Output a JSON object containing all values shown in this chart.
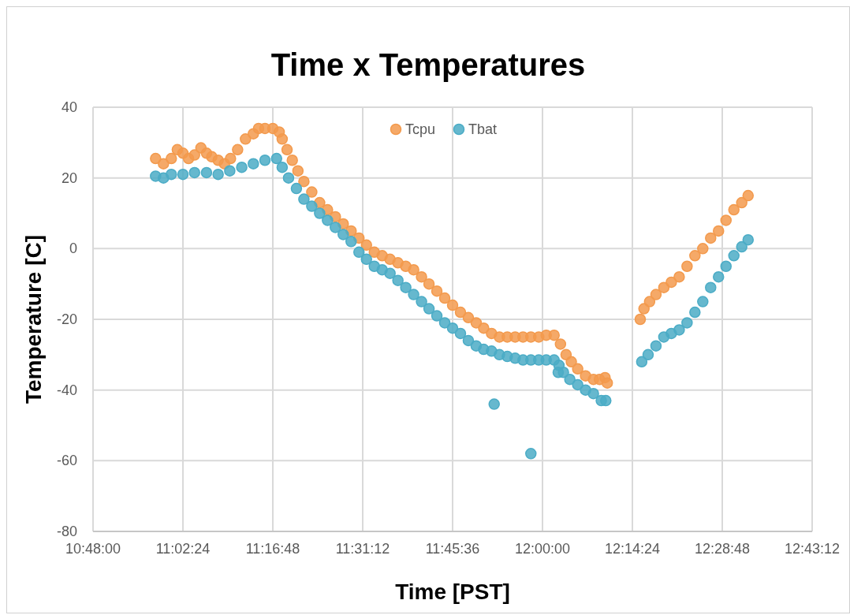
{
  "chart_data": {
    "type": "scatter",
    "title": "Time x Temperatures",
    "xlabel": "Time [PST]",
    "ylabel": "Temperature [C]",
    "xlim": [
      10.8,
      12.72
    ],
    "xticks": [
      {
        "value": 10.8,
        "label": "10:48:00"
      },
      {
        "value": 11.04,
        "label": "11:02:24"
      },
      {
        "value": 11.28,
        "label": "11:16:48"
      },
      {
        "value": 11.52,
        "label": "11:31:12"
      },
      {
        "value": 11.76,
        "label": "11:45:36"
      },
      {
        "value": 12.0,
        "label": "12:00:00"
      },
      {
        "value": 12.24,
        "label": "12:14:24"
      },
      {
        "value": 12.48,
        "label": "12:28:48"
      },
      {
        "value": 12.72,
        "label": "12:43:12"
      }
    ],
    "ylim": [
      -80,
      40
    ],
    "yticks": [
      -80,
      -60,
      -40,
      -20,
      0,
      20,
      40
    ],
    "grid": true,
    "legend": "top",
    "marker": "circle",
    "series": [
      {
        "name": "Tcpu",
        "color": "#f39a4d",
        "x": [
          10.967,
          10.988,
          11.009,
          11.025,
          11.04,
          11.055,
          11.071,
          11.088,
          11.103,
          11.117,
          11.134,
          11.151,
          11.167,
          11.186,
          11.207,
          11.228,
          11.242,
          11.259,
          11.28,
          11.297,
          11.305,
          11.318,
          11.332,
          11.347,
          11.363,
          11.384,
          11.405,
          11.426,
          11.447,
          11.468,
          11.489,
          11.51,
          11.53,
          11.551,
          11.572,
          11.593,
          11.614,
          11.635,
          11.656,
          11.677,
          11.697,
          11.718,
          11.739,
          11.76,
          11.781,
          11.802,
          11.823,
          11.843,
          11.864,
          11.885,
          11.906,
          11.927,
          11.948,
          11.969,
          11.99,
          12.01,
          12.031,
          12.048,
          12.063,
          12.077,
          12.094,
          12.115,
          12.136,
          12.152,
          12.167,
          12.173,
          12.261,
          12.271,
          12.286,
          12.303,
          12.324,
          12.344,
          12.365,
          12.386,
          12.407,
          12.428,
          12.449,
          12.47,
          12.49,
          12.511,
          12.532,
          12.549
        ],
        "values": [
          25.5,
          24,
          25.5,
          28,
          27,
          25.5,
          26.5,
          28.5,
          27,
          26,
          25,
          24,
          25.5,
          28,
          31,
          32.5,
          34,
          34,
          34,
          33,
          31,
          28,
          25,
          22,
          19,
          16,
          13,
          11,
          9,
          7,
          5,
          3,
          1,
          -1,
          -2,
          -3,
          -4,
          -5,
          -6,
          -8,
          -10,
          -12,
          -14,
          -16,
          -18,
          -19.5,
          -21,
          -22.5,
          -24,
          -25,
          -25,
          -25,
          -25,
          -25,
          -25,
          -24.5,
          -24.5,
          -27,
          -30,
          -32,
          -34,
          -36,
          -37,
          -37,
          -36.5,
          -38,
          -20,
          -17,
          -15,
          -13,
          -11,
          -9.5,
          -8,
          -5,
          -2,
          0,
          3,
          5,
          8,
          11,
          13,
          15
        ]
      },
      {
        "name": "Tbat",
        "color": "#4bacc6",
        "x": [
          10.967,
          10.988,
          11.009,
          11.04,
          11.071,
          11.103,
          11.134,
          11.165,
          11.197,
          11.228,
          11.259,
          11.29,
          11.305,
          11.322,
          11.343,
          11.363,
          11.384,
          11.405,
          11.426,
          11.447,
          11.468,
          11.489,
          11.51,
          11.53,
          11.551,
          11.572,
          11.593,
          11.614,
          11.635,
          11.656,
          11.677,
          11.697,
          11.718,
          11.739,
          11.76,
          11.781,
          11.802,
          11.823,
          11.843,
          11.864,
          11.871,
          11.885,
          11.906,
          11.927,
          11.948,
          11.969,
          11.969,
          11.99,
          12.01,
          12.031,
          12.042,
          12.044,
          12.056,
          12.073,
          12.094,
          12.115,
          12.136,
          12.157,
          12.169,
          12.265,
          12.282,
          12.303,
          12.324,
          12.344,
          12.365,
          12.386,
          12.407,
          12.428,
          12.449,
          12.47,
          12.49,
          12.511,
          12.532,
          12.549
        ],
        "values": [
          20.5,
          20,
          21,
          21,
          21.5,
          21.5,
          21,
          22,
          23,
          24,
          25,
          25.5,
          23,
          20,
          17,
          14,
          12,
          10,
          8,
          6,
          4,
          2,
          -1,
          -3,
          -5,
          -6,
          -7,
          -9,
          -11,
          -13,
          -15,
          -17,
          -19,
          -21,
          -22.5,
          -24,
          -26,
          -27.5,
          -28.5,
          -29,
          -44,
          -30,
          -30.5,
          -31,
          -31.5,
          -31.5,
          -58,
          -31.5,
          -31.5,
          -31.5,
          -35,
          -33,
          -35,
          -37,
          -38.5,
          -40,
          -41,
          -43,
          -43,
          -32,
          -30,
          -27.5,
          -25,
          -24,
          -23,
          -21,
          -18,
          -15,
          -11,
          -8,
          -5,
          -2,
          0.5,
          2.5
        ]
      }
    ]
  }
}
